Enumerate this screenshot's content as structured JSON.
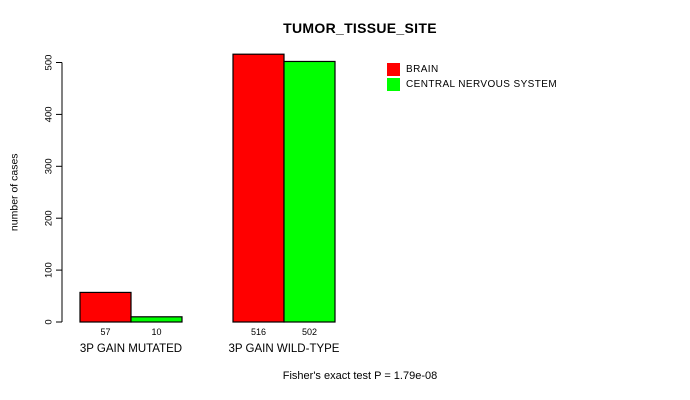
{
  "title": "TUMOR_TISSUE_SITE",
  "footnote": "Fisher's exact test P = 1.79e-08",
  "colors": {
    "brain": "#FF0000",
    "central_nervous_system": "#00FF00",
    "axis": "#000000",
    "background": "#FFFFFF"
  },
  "chart_data": {
    "type": "bar",
    "title": "TUMOR_TISSUE_SITE",
    "xlabel": "",
    "ylabel": "number of cases",
    "ylim": [
      0,
      500
    ],
    "yticks": [
      0,
      100,
      200,
      300,
      400,
      500
    ],
    "grid": false,
    "legend_position": "top-right",
    "categories": [
      "3P GAIN MUTATED",
      "3P GAIN WILD-TYPE"
    ],
    "series": [
      {
        "name": "BRAIN",
        "color": "#FF0000",
        "values": [
          57,
          516
        ]
      },
      {
        "name": "CENTRAL NERVOUS SYSTEM",
        "color": "#00FF00",
        "values": [
          10,
          502
        ]
      }
    ],
    "bar_value_labels": [
      [
        "57",
        "10"
      ],
      [
        "516",
        "502"
      ]
    ],
    "annotation": "Fisher's exact test P = 1.79e-08"
  }
}
